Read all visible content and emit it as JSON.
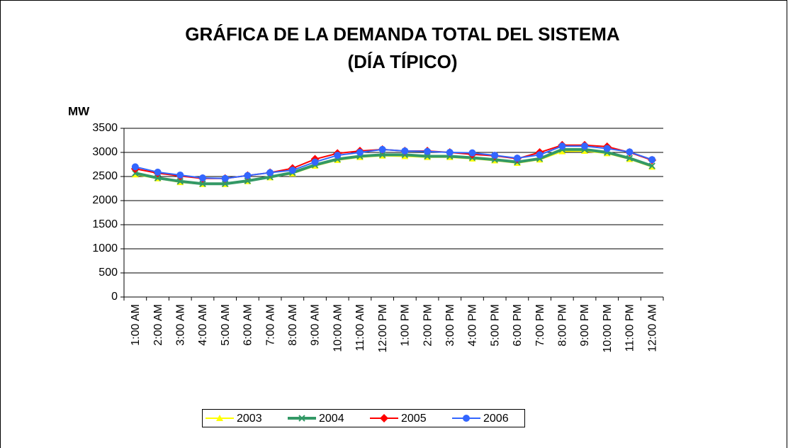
{
  "chart_data": {
    "type": "line",
    "title": [
      "GRÁFICA DE LA DEMANDA TOTAL DEL SISTEMA",
      "(DÍA TÍPICO)"
    ],
    "y_label": "MW",
    "categories": [
      "1:00 AM",
      "2:00 AM",
      "3:00 AM",
      "4:00 AM",
      "5:00 AM",
      "6:00 AM",
      "7:00 AM",
      "8:00 AM",
      "9:00 AM",
      "10:00 AM",
      "11:00 AM",
      "12:00 PM",
      "1:00 PM",
      "2:00 PM",
      "3:00 PM",
      "4:00 PM",
      "5:00 PM",
      "6:00 PM",
      "7:00 PM",
      "8:00 PM",
      "9:00 PM",
      "10:00 PM",
      "11:00 PM",
      "12:00 AM"
    ],
    "series": [
      {
        "name": "2003",
        "color": "#ffff00",
        "marker": "triangle",
        "values": [
          2540,
          2460,
          2380,
          2340,
          2340,
          2400,
          2480,
          2560,
          2720,
          2840,
          2900,
          2930,
          2920,
          2900,
          2900,
          2870,
          2830,
          2780,
          2850,
          3020,
          3030,
          2980,
          2860,
          2700
        ]
      },
      {
        "name": "2004",
        "color": "#339966",
        "marker": "x",
        "values": [
          2570,
          2470,
          2400,
          2350,
          2350,
          2410,
          2490,
          2580,
          2740,
          2860,
          2920,
          2950,
          2950,
          2920,
          2920,
          2890,
          2850,
          2800,
          2870,
          3060,
          3060,
          3000,
          2880,
          2720
        ]
      },
      {
        "name": "2005",
        "color": "#ff0000",
        "marker": "diamond",
        "values": [
          2660,
          2570,
          2510,
          2460,
          2460,
          2520,
          2580,
          2670,
          2860,
          2980,
          3030,
          3060,
          3030,
          3030,
          3000,
          2960,
          2930,
          2870,
          3000,
          3150,
          3150,
          3120,
          3000,
          2840
        ]
      },
      {
        "name": "2006",
        "color": "#3366ff",
        "marker": "circle",
        "values": [
          2700,
          2590,
          2530,
          2470,
          2460,
          2520,
          2580,
          2630,
          2800,
          2940,
          3000,
          3060,
          3030,
          3020,
          3000,
          2990,
          2940,
          2880,
          2950,
          3130,
          3130,
          3080,
          3010,
          2850
        ]
      }
    ],
    "ylim": [
      0,
      3500
    ],
    "yticks": [
      0,
      500,
      1000,
      1500,
      2000,
      2500,
      3000,
      3500
    ],
    "grid": true,
    "legend": "bottom"
  }
}
